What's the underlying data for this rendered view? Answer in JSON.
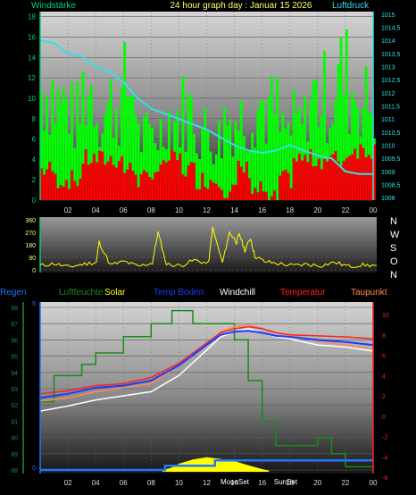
{
  "header": {
    "left_label": "Windstärke",
    "title": "24 hour graph day : Januar 15 2026",
    "right_label": "Luftdruck"
  },
  "legend": {
    "regen": "Regen",
    "luftfeuchte": "Luftfeuchte",
    "solar": "Solar",
    "temp_boden": "Temp Boden",
    "windchill": "Windchill",
    "temperatur": "Temperatur",
    "taupunkt": "Taupunkt"
  },
  "wind_dir_letters": [
    "N",
    "W",
    "S",
    "O",
    "N"
  ],
  "markers": {
    "moon": "MoonSet",
    "sun": "SunSet"
  },
  "colors": {
    "wind_bar": "#00ff00",
    "wind_bar_low": "#ff0000",
    "pressure": "#33e0e8",
    "direction": "#ffff00",
    "humidity": "#1a8a1a",
    "temp": "#ff2020",
    "temp_boden": "#1a3cff",
    "windchill": "#ffffff",
    "taupunkt": "#ff8a50",
    "rain": "#1e78ff",
    "solar": "#ffff00",
    "left_axis": "#00d27a",
    "right_axis": "#33e0e8",
    "left_axis_3": "#1e8c3c",
    "right_axis_3": "#ff2020"
  },
  "chart_data": [
    {
      "type": "bar",
      "name": "wind",
      "x_ticks": [
        "02",
        "04",
        "06",
        "08",
        "10",
        "12",
        "14",
        "16",
        "18",
        "20",
        "22",
        "00"
      ],
      "y_left_ticks": [
        "0",
        "2",
        "4",
        "6",
        "8",
        "10",
        "12",
        "14",
        "16",
        "18"
      ],
      "y_left_range": [
        0,
        18.5
      ],
      "y_right_ticks": [
        "1008",
        "1008,5",
        "1009",
        "1009,5",
        "1010",
        "1010,5",
        "1011",
        "1011,5",
        "1012",
        "1012,5",
        "1013",
        "1013,5",
        "1014",
        "1014,5",
        "1015"
      ],
      "y_right_range": [
        1007.9,
        1015.1
      ],
      "wind_gust_hourly": [
        16,
        14,
        12,
        16,
        13,
        14,
        16,
        9,
        10,
        12,
        13,
        10,
        9,
        12,
        12,
        14,
        13,
        10,
        11,
        15,
        15,
        18,
        16,
        14
      ],
      "wind_avg_hourly": [
        3,
        2,
        2,
        4,
        4,
        4,
        3,
        2,
        3,
        4,
        3,
        2,
        2,
        1,
        3,
        1,
        0,
        2,
        4,
        4,
        4,
        4,
        5,
        5
      ],
      "pressure": [
        [
          0,
          1014.0
        ],
        [
          1,
          1013.9
        ],
        [
          2,
          1013.5
        ],
        [
          3,
          1013.4
        ],
        [
          4,
          1013.0
        ],
        [
          5,
          1012.8
        ],
        [
          6,
          1012.4
        ],
        [
          7,
          1011.8
        ],
        [
          8,
          1011.4
        ],
        [
          9,
          1011.2
        ],
        [
          10,
          1011.0
        ],
        [
          11,
          1010.8
        ],
        [
          12,
          1010.6
        ],
        [
          13,
          1010.3
        ],
        [
          14,
          1010.0
        ],
        [
          15,
          1009.8
        ],
        [
          16,
          1009.7
        ],
        [
          17,
          1009.8
        ],
        [
          18,
          1010.0
        ],
        [
          19,
          1009.8
        ],
        [
          20,
          1009.6
        ],
        [
          21,
          1009.5
        ],
        [
          22,
          1009.0
        ],
        [
          23,
          1008.9
        ],
        [
          24,
          1008.9
        ]
      ]
    },
    {
      "type": "scatter",
      "name": "wind_direction",
      "y_ticks": [
        "0",
        "90",
        "180",
        "270",
        "360"
      ],
      "y_range": [
        0,
        360
      ],
      "direction_samples": [
        [
          0,
          30
        ],
        [
          1,
          45
        ],
        [
          2,
          20
        ],
        [
          3,
          40
        ],
        [
          4,
          55
        ],
        [
          4.2,
          200
        ],
        [
          5,
          35
        ],
        [
          6,
          60
        ],
        [
          7,
          25
        ],
        [
          8,
          50
        ],
        [
          8.4,
          270
        ],
        [
          9,
          40
        ],
        [
          10,
          30
        ],
        [
          11,
          70
        ],
        [
          12,
          45
        ],
        [
          12.3,
          300
        ],
        [
          13,
          50
        ],
        [
          13.5,
          270
        ],
        [
          14,
          200
        ],
        [
          14.2,
          260
        ],
        [
          14.6,
          140
        ],
        [
          15,
          230
        ],
        [
          15.3,
          100
        ],
        [
          16,
          60
        ],
        [
          17,
          45
        ],
        [
          18,
          30
        ],
        [
          19,
          40
        ],
        [
          20,
          30
        ],
        [
          21,
          55
        ],
        [
          22,
          25
        ],
        [
          23,
          35
        ],
        [
          24,
          30
        ]
      ]
    },
    {
      "type": "line",
      "name": "temperature",
      "x_ticks": [
        "02",
        "04",
        "06",
        "08",
        "10",
        "12",
        "14",
        "16",
        "18",
        "20",
        "22",
        "00"
      ],
      "y_left_ticks": [
        "88",
        "89",
        "90",
        "91",
        "92",
        "93",
        "94",
        "95",
        "96",
        "97",
        "98"
      ],
      "y_left_range": [
        87.8,
        98.2
      ],
      "y_right_ticks": [
        "-6",
        "-4",
        "-2",
        "0",
        "2",
        "4",
        "6",
        "8",
        "10"
      ],
      "y_right_range": [
        -6.5,
        10.5
      ],
      "y_inner_ticks": [
        "0",
        "5"
      ],
      "temperatur": [
        [
          0,
          2.2
        ],
        [
          2,
          2.5
        ],
        [
          4,
          3.0
        ],
        [
          6,
          3.2
        ],
        [
          8,
          3.8
        ],
        [
          10,
          5.2
        ],
        [
          12,
          7.2
        ],
        [
          13,
          8.2
        ],
        [
          14,
          8.6
        ],
        [
          15,
          8.8
        ],
        [
          16,
          8.6
        ],
        [
          17,
          8.2
        ],
        [
          18,
          8.0
        ],
        [
          20,
          7.9
        ],
        [
          22,
          7.8
        ],
        [
          24,
          7.6
        ]
      ],
      "temp_boden": [
        [
          0,
          1.8
        ],
        [
          2,
          2.2
        ],
        [
          4,
          2.8
        ],
        [
          6,
          3.0
        ],
        [
          8,
          3.5
        ],
        [
          10,
          5.0
        ],
        [
          12,
          7.0
        ],
        [
          13,
          8.0
        ],
        [
          14,
          8.3
        ],
        [
          15,
          8.4
        ],
        [
          16,
          8.2
        ],
        [
          17,
          7.9
        ],
        [
          18,
          7.8
        ],
        [
          20,
          7.5
        ],
        [
          22,
          7.3
        ],
        [
          24,
          7.0
        ]
      ],
      "windchill": [
        [
          0,
          0.5
        ],
        [
          2,
          1.0
        ],
        [
          4,
          1.6
        ],
        [
          6,
          2.0
        ],
        [
          8,
          2.4
        ],
        [
          10,
          4.0
        ],
        [
          12,
          6.5
        ],
        [
          13,
          7.8
        ],
        [
          14,
          8.3
        ],
        [
          15,
          8.6
        ],
        [
          16,
          8.2
        ],
        [
          17,
          7.8
        ],
        [
          18,
          7.6
        ],
        [
          20,
          7.0
        ],
        [
          22,
          6.8
        ],
        [
          24,
          6.4
        ]
      ],
      "taupunkt": [
        [
          0,
          1.5
        ],
        [
          2,
          1.8
        ],
        [
          4,
          2.4
        ],
        [
          6,
          2.8
        ],
        [
          8,
          3.2
        ],
        [
          10,
          5.0
        ],
        [
          12,
          7.0
        ],
        [
          13,
          8.3
        ],
        [
          14,
          8.8
        ],
        [
          15,
          9.0
        ],
        [
          16,
          8.6
        ],
        [
          17,
          8.2
        ],
        [
          18,
          8.0
        ],
        [
          20,
          7.4
        ],
        [
          22,
          7.0
        ],
        [
          24,
          6.6
        ]
      ],
      "luftfeuchte": [
        [
          0,
          92.2
        ],
        [
          1,
          92.2
        ],
        [
          1,
          93.8
        ],
        [
          3,
          93.8
        ],
        [
          3,
          94.5
        ],
        [
          4,
          94.5
        ],
        [
          4,
          95.2
        ],
        [
          6,
          95.2
        ],
        [
          6,
          96.2
        ],
        [
          8,
          96.2
        ],
        [
          8,
          97.0
        ],
        [
          9.5,
          97.0
        ],
        [
          9.5,
          97.8
        ],
        [
          11,
          97.8
        ],
        [
          11,
          97.0
        ],
        [
          14,
          97.0
        ],
        [
          14,
          96.0
        ],
        [
          15,
          96.0
        ],
        [
          15,
          93.5
        ],
        [
          16,
          93.5
        ],
        [
          16,
          91.0
        ],
        [
          17,
          91.0
        ],
        [
          17,
          89.5
        ],
        [
          20,
          89.5
        ],
        [
          20,
          90.0
        ],
        [
          21,
          90.0
        ],
        [
          21,
          89.0
        ],
        [
          22,
          89.0
        ],
        [
          22,
          88.2
        ],
        [
          24,
          88.2
        ]
      ],
      "solar": [
        [
          8.8,
          0.3
        ],
        [
          9.5,
          0.8
        ],
        [
          10,
          1.5
        ],
        [
          11,
          2.3
        ],
        [
          12,
          2.7
        ],
        [
          13,
          2.4
        ],
        [
          14,
          2.0
        ],
        [
          15,
          1.2
        ],
        [
          16,
          0.5
        ],
        [
          16.5,
          0.2
        ]
      ],
      "regen_level": [
        [
          0,
          0
        ],
        [
          9,
          0
        ],
        [
          9,
          0.8
        ],
        [
          12.6,
          0.8
        ],
        [
          12.6,
          1.8
        ],
        [
          24,
          1.8
        ]
      ]
    }
  ]
}
